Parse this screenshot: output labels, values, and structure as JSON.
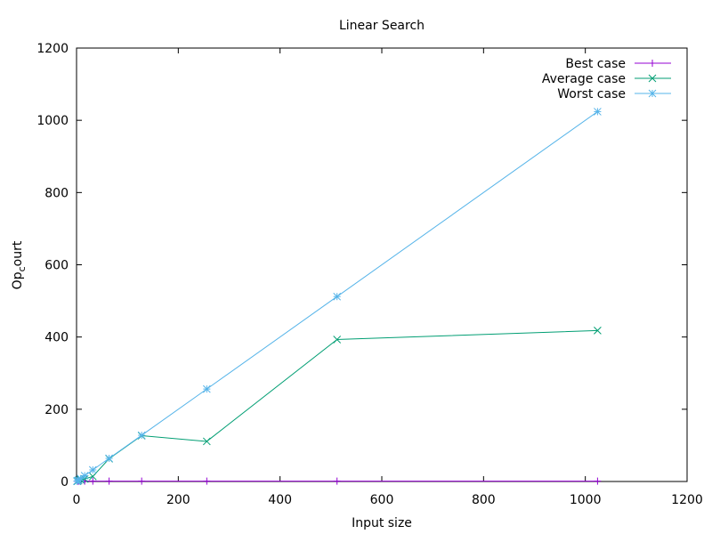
{
  "chart_data": {
    "type": "line",
    "title": "Linear Search",
    "xlabel": "Input size",
    "ylabel": "Op",
    "ylabel_sub": "c",
    "ylabel_rest": "ourt",
    "xlim": [
      0,
      1200
    ],
    "ylim": [
      0,
      1200
    ],
    "xticks": [
      0,
      200,
      400,
      600,
      800,
      1000,
      1200
    ],
    "yticks": [
      0,
      200,
      400,
      600,
      800,
      1000,
      1200
    ],
    "grid": false,
    "legend_position": "top-right",
    "series": [
      {
        "name": "Best case",
        "color": "#9400d3",
        "marker": "plus",
        "points": [
          [
            1,
            1
          ],
          [
            2,
            1
          ],
          [
            4,
            1
          ],
          [
            8,
            1
          ],
          [
            16,
            1
          ],
          [
            32,
            1
          ],
          [
            64,
            1
          ],
          [
            128,
            1
          ],
          [
            256,
            1
          ],
          [
            512,
            1
          ],
          [
            1024,
            1
          ]
        ]
      },
      {
        "name": "Average case",
        "color": "#009e73",
        "marker": "cross",
        "points": [
          [
            1,
            1
          ],
          [
            2,
            1
          ],
          [
            4,
            3
          ],
          [
            8,
            5
          ],
          [
            16,
            7
          ],
          [
            32,
            14
          ],
          [
            64,
            63
          ],
          [
            128,
            127
          ],
          [
            256,
            111
          ],
          [
            512,
            393
          ],
          [
            1024,
            418
          ]
        ]
      },
      {
        "name": "Worst case",
        "color": "#56b4e9",
        "marker": "star",
        "points": [
          [
            1,
            1
          ],
          [
            2,
            2
          ],
          [
            4,
            4
          ],
          [
            8,
            8
          ],
          [
            16,
            16
          ],
          [
            32,
            32
          ],
          [
            64,
            64
          ],
          [
            128,
            128
          ],
          [
            256,
            256
          ],
          [
            512,
            512
          ],
          [
            1024,
            1024
          ]
        ]
      }
    ]
  }
}
